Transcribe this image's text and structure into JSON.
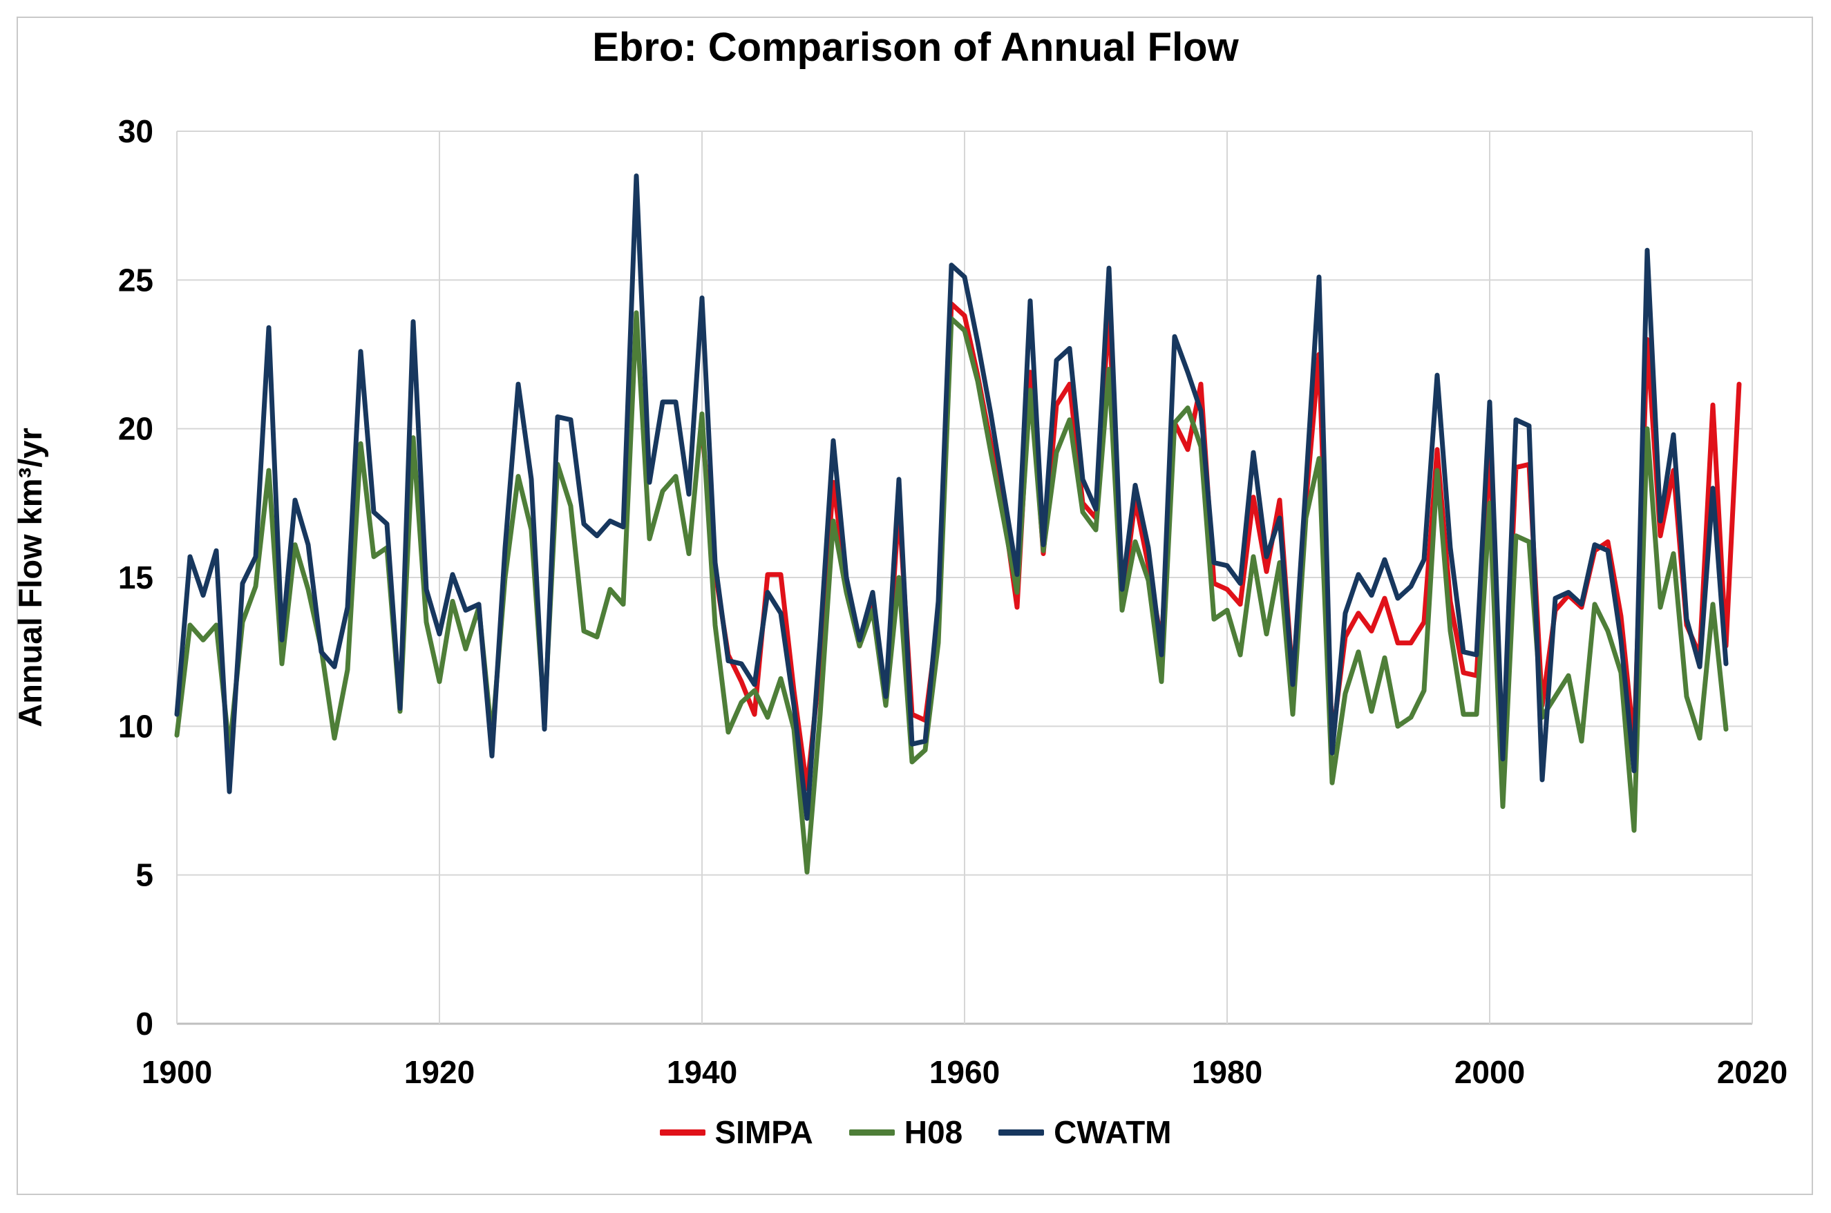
{
  "chart_data": {
    "type": "line",
    "title": "Ebro: Comparison of Annual Flow",
    "xlabel": "",
    "ylabel": "Annual Flow km³/yr",
    "xlim": [
      1900,
      2020
    ],
    "ylim": [
      0,
      30
    ],
    "xticks": [
      1900,
      1920,
      1940,
      1960,
      1980,
      2000,
      2020
    ],
    "yticks": [
      0,
      5,
      10,
      15,
      20,
      25,
      30
    ],
    "grid": true,
    "legend_position": "bottom",
    "grid_color": "#D6D6D6",
    "axis_color": "#BFBFBF",
    "series": [
      {
        "name": "SIMPA",
        "color": "#E01119",
        "start": 1940,
        "values": [
          20.0,
          15.2,
          12.4,
          11.5,
          10.4,
          15.1,
          15.1,
          11.2,
          7.9,
          12.1,
          18.2,
          14.8,
          12.7,
          14.0,
          10.8,
          17.4,
          10.4,
          10.2,
          13.6,
          24.2,
          23.8,
          21.8,
          19.5,
          17.2,
          14.0,
          21.9,
          15.8,
          20.8,
          21.5,
          17.5,
          17.0,
          24.0,
          14.1,
          17.6,
          15.4,
          12.8,
          20.2,
          19.3,
          21.5,
          14.8,
          14.6,
          14.1,
          17.7,
          15.2,
          17.6,
          11.5,
          17.5,
          22.5,
          9.5,
          13.0,
          13.8,
          13.2,
          14.3,
          12.8,
          12.8,
          13.5,
          19.3,
          14.2,
          11.8,
          11.7,
          19.3,
          9.1,
          18.7,
          18.8,
          10.7,
          13.9,
          14.4,
          14.0,
          15.9,
          16.2,
          13.7,
          9.4,
          23.0,
          16.4,
          18.6,
          13.4,
          12.4,
          20.8,
          12.7,
          21.5
        ]
      },
      {
        "name": "H08",
        "color": "#4E7E38",
        "start": 1900,
        "values": [
          9.7,
          13.4,
          12.9,
          13.4,
          9.2,
          13.5,
          14.7,
          18.6,
          12.1,
          16.1,
          14.6,
          12.6,
          9.6,
          11.9,
          19.5,
          15.7,
          16.0,
          10.5,
          19.7,
          13.5,
          11.5,
          14.2,
          12.6,
          14.0,
          9.6,
          15.0,
          18.4,
          16.6,
          10.3,
          18.8,
          17.4,
          13.2,
          13.0,
          14.6,
          14.1,
          23.9,
          16.3,
          17.9,
          18.4,
          15.8,
          20.5,
          13.4,
          9.8,
          10.8,
          11.2,
          10.3,
          11.6,
          9.9,
          5.1,
          10.4,
          16.9,
          14.5,
          12.7,
          13.9,
          10.7,
          15.0,
          8.8,
          9.2,
          12.8,
          23.7,
          23.3,
          21.6,
          19.2,
          16.9,
          14.5,
          21.3,
          15.9,
          19.2,
          20.3,
          17.2,
          16.6,
          22.0,
          13.9,
          16.2,
          14.9,
          11.5,
          20.2,
          20.7,
          19.4,
          13.6,
          13.9,
          12.4,
          15.7,
          13.1,
          15.5,
          10.4,
          17.0,
          19.0,
          8.1,
          11.1,
          12.5,
          10.5,
          12.3,
          10.0,
          10.3,
          11.2,
          18.6,
          13.2,
          10.4,
          10.4,
          17.5,
          7.3,
          16.4,
          16.2,
          10.3,
          11.0,
          11.7,
          9.5,
          14.1,
          13.2,
          11.8,
          6.5,
          20.0,
          14.0,
          15.8,
          11.0,
          9.6,
          14.1,
          9.9
        ]
      },
      {
        "name": "CWATM",
        "color": "#17375E",
        "start": 1900,
        "values": [
          10.4,
          15.7,
          14.4,
          15.9,
          7.8,
          14.8,
          15.7,
          23.4,
          12.9,
          17.6,
          16.1,
          12.5,
          12.0,
          14.0,
          22.6,
          17.2,
          16.8,
          10.6,
          23.6,
          14.6,
          13.1,
          15.1,
          13.9,
          14.1,
          9.0,
          16.0,
          21.5,
          18.3,
          9.9,
          20.4,
          20.3,
          16.8,
          16.4,
          16.9,
          16.7,
          28.5,
          18.2,
          20.9,
          20.9,
          17.8,
          24.4,
          15.5,
          12.2,
          12.1,
          11.4,
          14.5,
          13.8,
          10.7,
          6.9,
          12.9,
          19.6,
          15.0,
          12.9,
          14.5,
          11.0,
          18.3,
          9.4,
          9.5,
          14.2,
          25.5,
          25.1,
          22.9,
          20.5,
          17.8,
          15.1,
          24.3,
          16.1,
          22.3,
          22.7,
          18.3,
          17.3,
          25.4,
          14.6,
          18.1,
          16.0,
          12.4,
          23.1,
          21.9,
          20.6,
          15.5,
          15.4,
          14.8,
          19.2,
          15.7,
          17.0,
          11.4,
          18.1,
          25.1,
          9.1,
          13.8,
          15.1,
          14.4,
          15.6,
          14.3,
          14.7,
          15.6,
          21.8,
          16.0,
          12.5,
          12.4,
          20.9,
          8.9,
          20.3,
          20.1,
          8.2,
          14.3,
          14.5,
          14.1,
          16.1,
          15.9,
          12.9,
          8.5,
          26.0,
          16.9,
          19.8,
          13.6,
          12.0,
          18.0,
          12.1
        ]
      }
    ]
  }
}
